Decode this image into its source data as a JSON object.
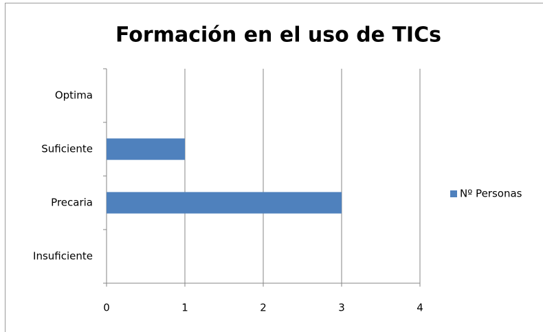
{
  "chart_data": {
    "type": "bar",
    "orientation": "horizontal",
    "title": "Formación en el uso de TICs",
    "categories": [
      "Optima",
      "Suficiente",
      "Precaria",
      "Insuficiente"
    ],
    "series": [
      {
        "name": "Nº Personas",
        "color": "#4f81bd",
        "values": [
          0,
          1,
          3,
          0
        ]
      }
    ],
    "xlim": [
      0,
      4
    ],
    "xticks": [
      0,
      1,
      2,
      3,
      4
    ],
    "grid": true,
    "legend": "right"
  }
}
